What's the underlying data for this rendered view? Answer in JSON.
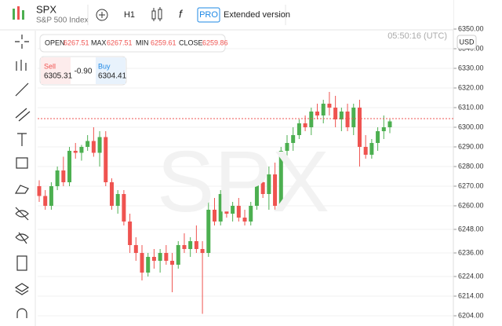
{
  "header": {
    "symbol": "SPX",
    "name": "S&P 500 Index",
    "interval": "H1",
    "pro": "PRO",
    "extended": "Extended version"
  },
  "ohlc_bar": {
    "open_label": "OPEN",
    "open": 6267.51,
    "max_label": "MAX",
    "max": 6267.51,
    "min_label": "MIN",
    "min": 6259.61,
    "close_label": "CLOSE",
    "close": 6259.86
  },
  "trade": {
    "sell_label": "Sell",
    "sell": 6305.31,
    "change": "-0.90",
    "buy_label": "Buy",
    "buy": 6304.41
  },
  "time": "05:50:16 (UTC)",
  "currency": "USD",
  "chart_data": {
    "type": "candlestick",
    "up_color": "#4caf50",
    "down_color": "#ef5350",
    "grid": true,
    "ylim": [
      6198.8,
      6364.8
    ],
    "yticks": [
      {
        "value": 6350,
        "label": "6350.00"
      },
      {
        "value": 6340,
        "label": "6340.00"
      },
      {
        "value": 6330,
        "label": "6330.00"
      },
      {
        "value": 6320,
        "label": "6320.00"
      },
      {
        "value": 6310,
        "label": "6310.00"
      },
      {
        "value": 6300,
        "label": "6300.00"
      },
      {
        "value": 6290,
        "label": "6290.00"
      },
      {
        "value": 6280,
        "label": "6280.00"
      },
      {
        "value": 6270,
        "label": "6270.00"
      },
      {
        "value": 6260,
        "label": "6260.00"
      },
      {
        "value": 6248,
        "label": "6248.00"
      },
      {
        "value": 6236,
        "label": "6236.00"
      },
      {
        "value": 6224,
        "label": "6224.00"
      },
      {
        "value": 6214,
        "label": "6214.00"
      },
      {
        "value": 6204,
        "label": "6204.00"
      }
    ],
    "open": [
      6270,
      6265,
      6260,
      6270,
      6278,
      6272,
      6288,
      6287,
      6290,
      6293,
      6287,
      6295,
      6272,
      6260,
      6266,
      6252,
      6240,
      6236,
      6226,
      6234,
      6232,
      6236,
      6232,
      6230,
      6240,
      6238,
      6242,
      6238,
      6236,
      6258,
      6252,
      6266,
      6256,
      6260,
      6254,
      6252,
      6260,
      6272,
      6266,
      6276,
      6260,
      6288,
      6292,
      6296,
      6302,
      6300,
      6308,
      6306,
      6312,
      6310,
      6304,
      6308,
      6300,
      6310,
      6290,
      6286,
      6292,
      6298,
      6300
    ],
    "high": [
      6273,
      6268,
      6272,
      6280,
      6285,
      6290,
      6292,
      6291,
      6296,
      6300,
      6298,
      6298,
      6274,
      6268,
      6268,
      6256,
      6244,
      6240,
      6236,
      6238,
      6238,
      6240,
      6236,
      6242,
      6246,
      6244,
      6250,
      6242,
      6262,
      6264,
      6268,
      6268,
      6262,
      6264,
      6258,
      6262,
      6274,
      6280,
      6280,
      6282,
      6290,
      6296,
      6300,
      6304,
      6306,
      6310,
      6312,
      6314,
      6318,
      6316,
      6310,
      6312,
      6312,
      6314,
      6296,
      6294,
      6300,
      6306,
      6304
    ],
    "low": [
      6262,
      6258,
      6258,
      6268,
      6270,
      6270,
      6284,
      6283,
      6288,
      6285,
      6280,
      6270,
      6258,
      6256,
      6250,
      6236,
      6232,
      6222,
      6224,
      6228,
      6226,
      6230,
      6216,
      6228,
      6236,
      6234,
      6236,
      6205,
      6234,
      6250,
      6250,
      6254,
      6252,
      6252,
      6250,
      6250,
      6258,
      6264,
      6258,
      6258,
      6258,
      6282,
      6288,
      6294,
      6298,
      6296,
      6304,
      6302,
      6306,
      6300,
      6298,
      6298,
      6296,
      6280,
      6284,
      6284,
      6288,
      6294,
      6297
    ],
    "close": [
      6265,
      6260,
      6270,
      6278,
      6272,
      6288,
      6287,
      6290,
      6293,
      6287,
      6295,
      6272,
      6260,
      6266,
      6252,
      6240,
      6236,
      6226,
      6234,
      6232,
      6236,
      6232,
      6230,
      6240,
      6238,
      6242,
      6238,
      6236,
      6258,
      6252,
      6266,
      6256,
      6260,
      6254,
      6252,
      6260,
      6272,
      6266,
      6276,
      6260,
      6288,
      6292,
      6296,
      6302,
      6300,
      6308,
      6306,
      6312,
      6310,
      6304,
      6308,
      6300,
      6310,
      6290,
      6286,
      6292,
      6298,
      6300,
      6303
    ]
  }
}
